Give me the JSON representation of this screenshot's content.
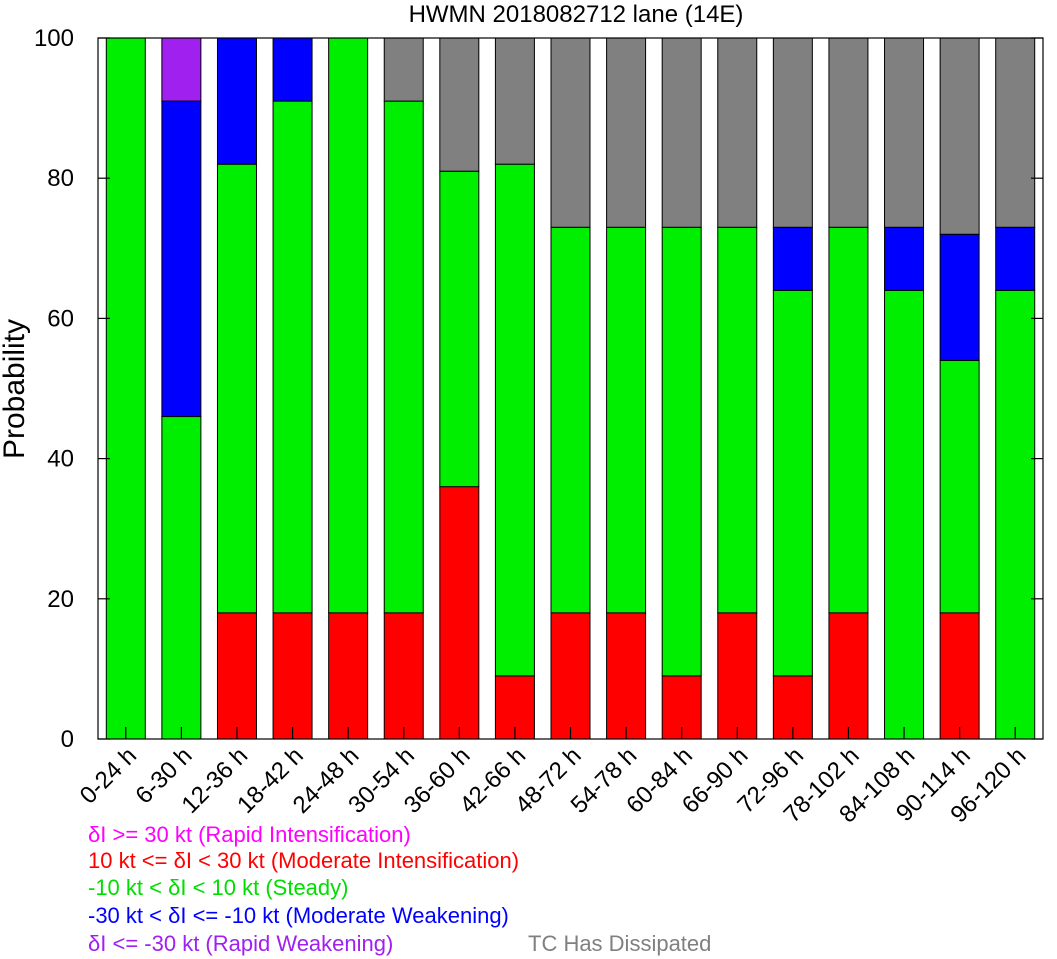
{
  "chart_data": {
    "type": "bar",
    "stacked": true,
    "title": "HWMN 2018082712 lane (14E)",
    "ylabel": "Probability",
    "xlabel": "",
    "ylim": [
      0,
      100
    ],
    "yticks": [
      0,
      20,
      40,
      60,
      80,
      100
    ],
    "categories": [
      "0-24 h",
      "6-30 h",
      "12-36 h",
      "18-42 h",
      "24-48 h",
      "30-54 h",
      "36-60 h",
      "42-66 h",
      "48-72 h",
      "54-78 h",
      "60-84 h",
      "66-90 h",
      "72-96 h",
      "78-102 h",
      "84-108 h",
      "90-114 h",
      "96-120 h"
    ],
    "series": [
      {
        "key": "moderate_intensification",
        "color": "#ff0000",
        "values": [
          0,
          0,
          18,
          18,
          18,
          18,
          36,
          9,
          18,
          18,
          9,
          18,
          9,
          18,
          0,
          18,
          0
        ]
      },
      {
        "key": "steady",
        "color": "#00ee00",
        "values": [
          100,
          46,
          64,
          73,
          82,
          73,
          45,
          73,
          55,
          55,
          64,
          55,
          55,
          55,
          64,
          36,
          64
        ]
      },
      {
        "key": "moderate_weakening",
        "color": "#0000ff",
        "values": [
          0,
          45,
          18,
          9,
          0,
          0,
          0,
          0,
          0,
          0,
          0,
          0,
          9,
          0,
          9,
          18,
          9
        ]
      },
      {
        "key": "rapid_weakening",
        "color": "#a020f0",
        "values": [
          0,
          9,
          0,
          0,
          0,
          0,
          0,
          0,
          0,
          0,
          0,
          0,
          0,
          0,
          0,
          0,
          0
        ]
      },
      {
        "key": "dissipated",
        "color": "#808080",
        "values": [
          0,
          0,
          0,
          0,
          0,
          9,
          19,
          18,
          27,
          27,
          27,
          27,
          27,
          27,
          27,
          28,
          27
        ]
      }
    ],
    "legend": [
      {
        "text": "δI >= 30 kt (Rapid Intensification)",
        "color": "#ff00ff"
      },
      {
        "text": "10 kt <= δI < 30 kt (Moderate Intensification)",
        "color": "#ff0000"
      },
      {
        "text": "-10 kt < δI < 10 kt (Steady)",
        "color": "#00dd00"
      },
      {
        "text": "-30 kt < δI <= -10 kt (Moderate Weakening)",
        "color": "#0000ff"
      },
      {
        "text": "δI <= -30 kt (Rapid Weakening)",
        "color": "#a020f0"
      },
      {
        "text": "TC Has Dissipated",
        "color": "#808080"
      }
    ],
    "grid": false
  }
}
